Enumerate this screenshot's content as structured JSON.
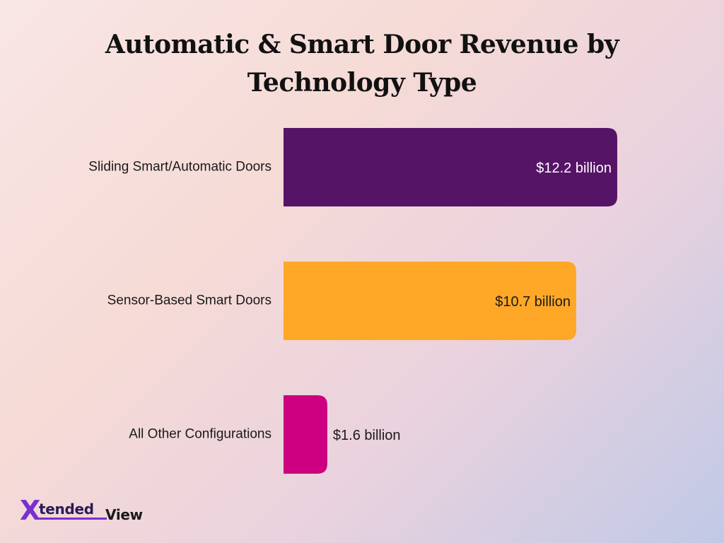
{
  "chart_data": {
    "type": "bar",
    "orientation": "horizontal",
    "title": "Automatic & Smart Door Revenue by Technology Type",
    "title_lines": [
      "Automatic & Smart Door Revenue by",
      "Technology Type"
    ],
    "categories": [
      "Sliding Smart/Automatic Doors",
      "Sensor-Based Smart Doors",
      "All Other Configurations"
    ],
    "values": [
      12.2,
      10.7,
      1.6
    ],
    "data_labels": [
      "$12.2 billion",
      "$10.7 billion",
      "$1.6 billion"
    ],
    "colors": [
      "#561466",
      "#ffa726",
      "#cc0080"
    ],
    "xlim": [
      0,
      12.2
    ],
    "unit": "billion USD",
    "grid": false,
    "legend": "none"
  },
  "logo": {
    "mark": "X",
    "word1": "tended",
    "word2": "View",
    "colors": {
      "mark": "#7a2fd0",
      "word1": "#2a1a55",
      "word2": "#1a1a1a"
    }
  }
}
